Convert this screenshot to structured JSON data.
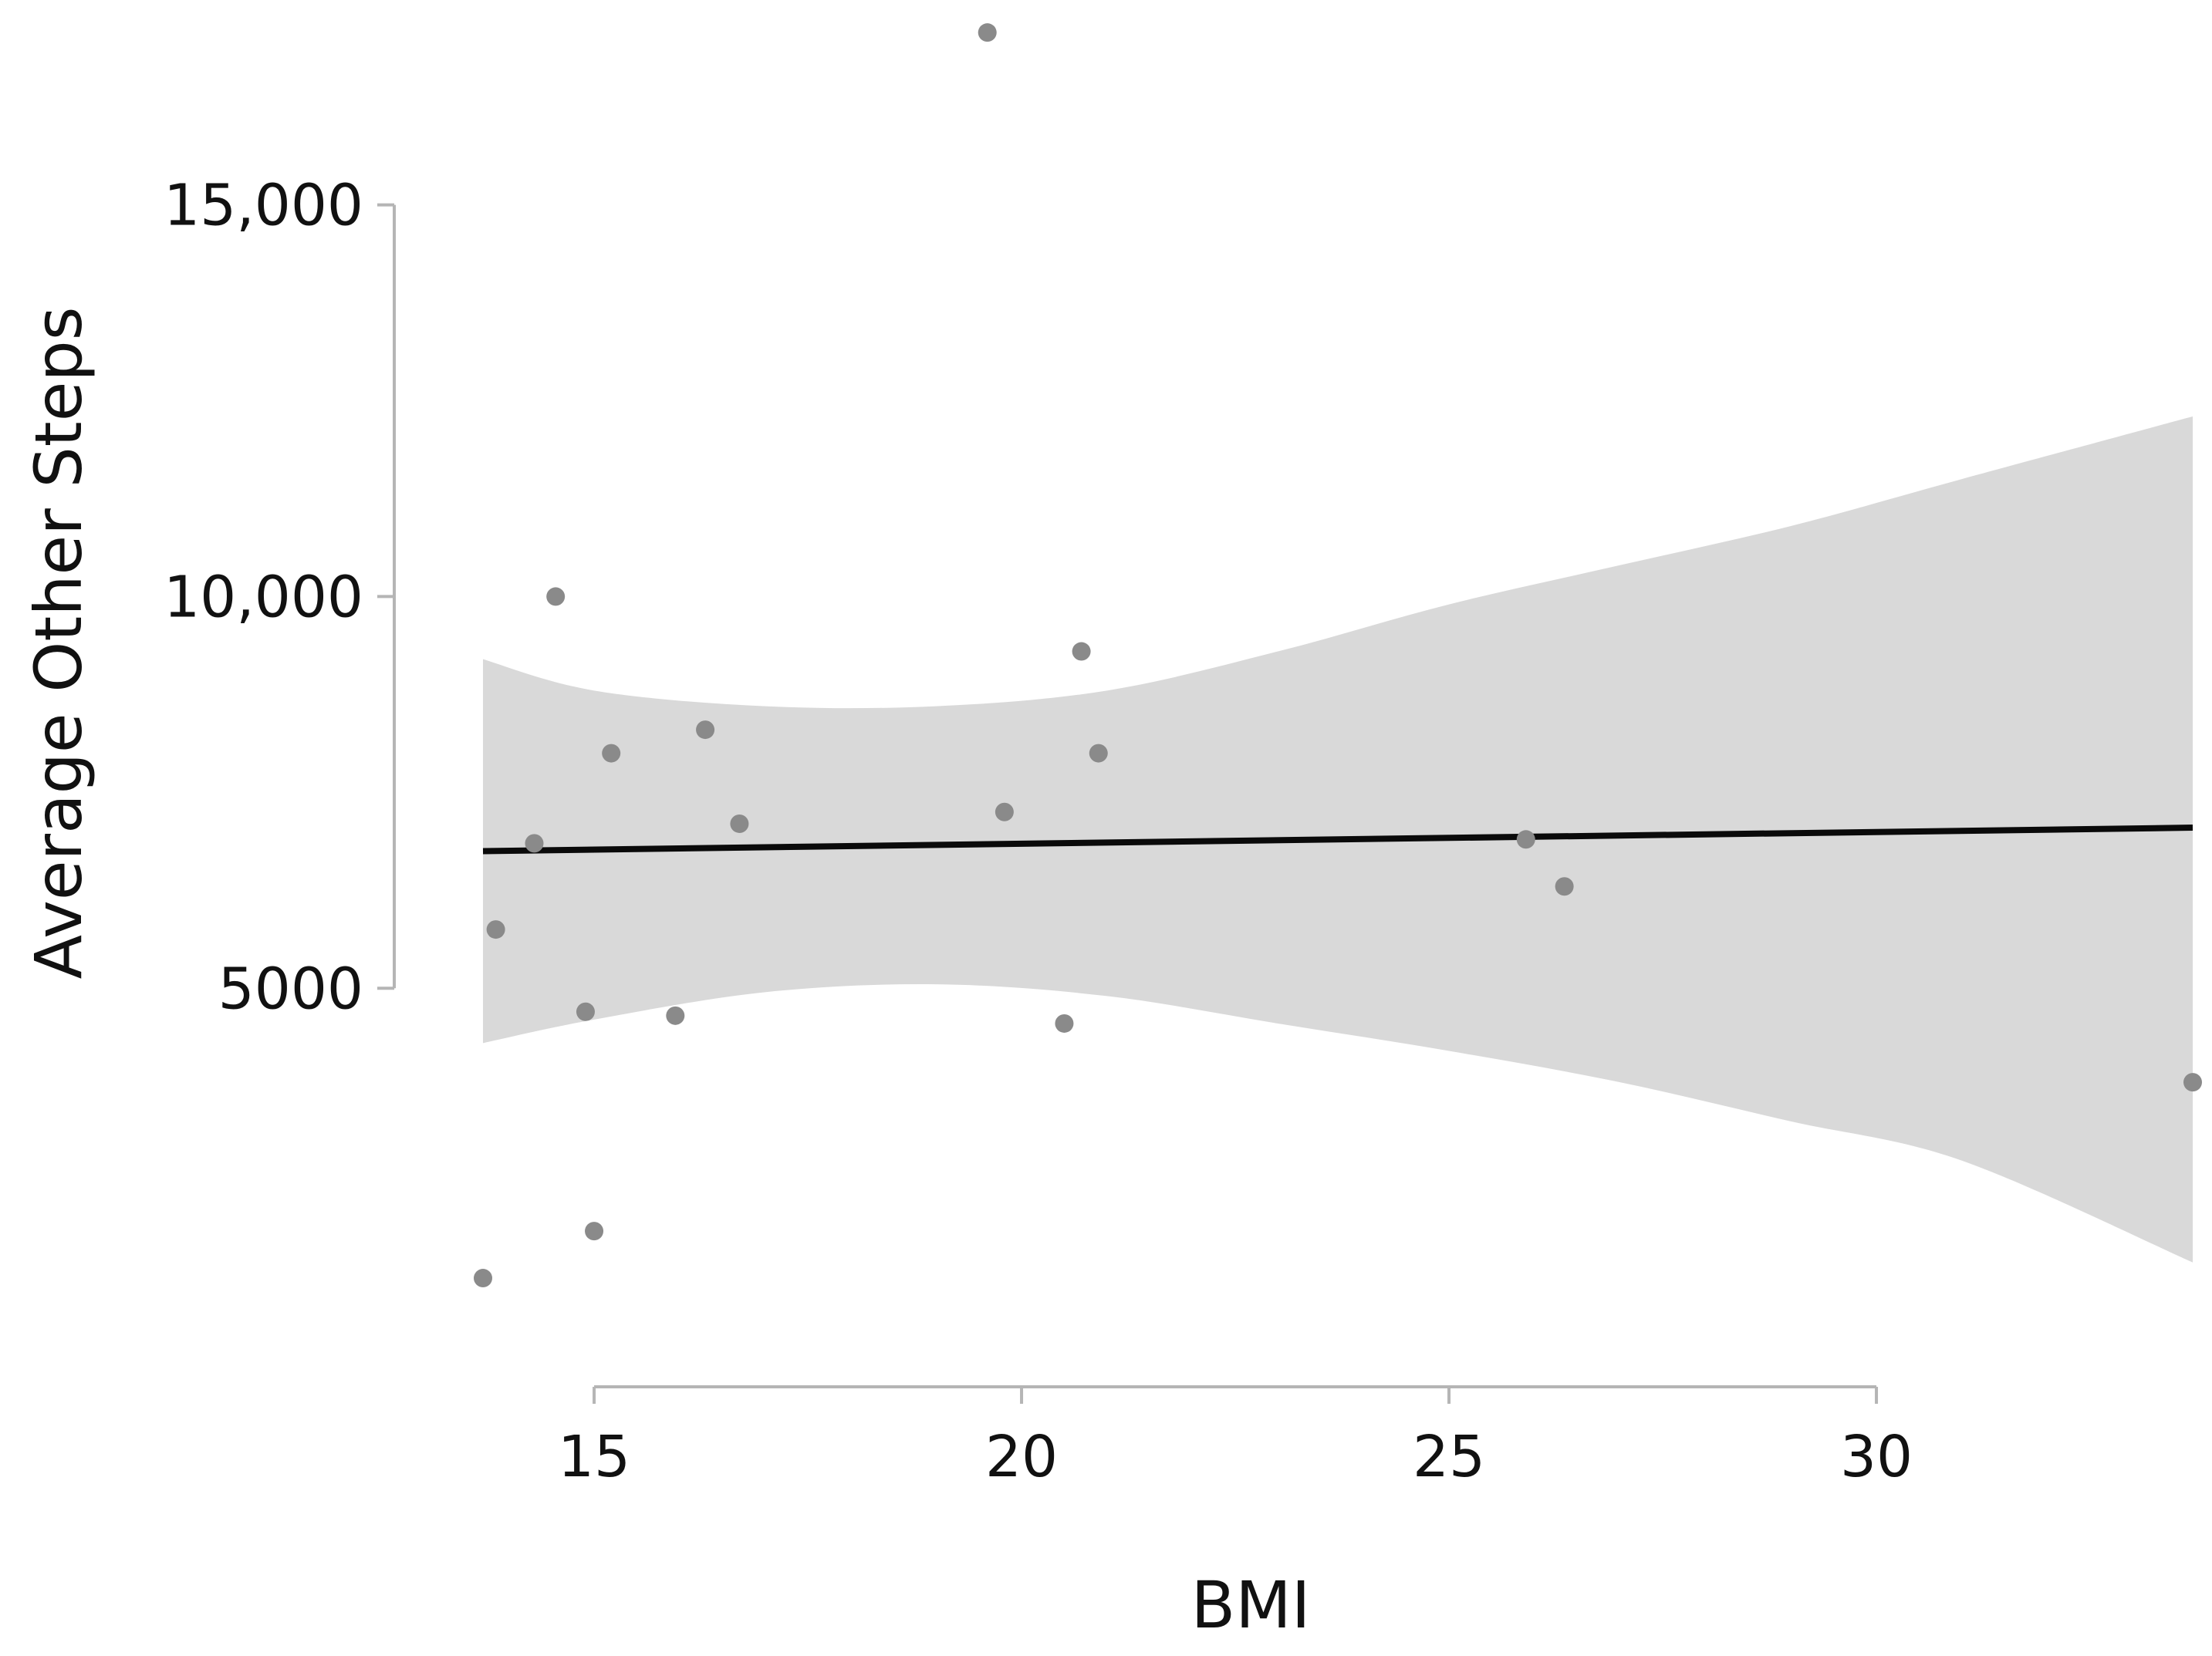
{
  "chart_data": {
    "type": "scatter",
    "title": "",
    "xlabel": "BMI",
    "ylabel": "Average Other Steps",
    "xlim": [
      13.7,
      33.7
    ],
    "ylim": [
      700,
      17300
    ],
    "x_ticks": [
      15,
      20,
      25,
      30
    ],
    "x_tick_labels": [
      "15",
      "20",
      "25",
      "30"
    ],
    "y_ticks": [
      5000,
      10000,
      15000
    ],
    "y_tick_labels": [
      "5000",
      "10,000",
      "15,000"
    ],
    "grid": false,
    "legend": "none",
    "colors": {
      "points": "#8a8a8a",
      "fit": "#0a0a0a",
      "band": "#d9d9d9",
      "axis": "#b5b5b5"
    },
    "points": [
      {
        "x": 13.7,
        "y": 1300
      },
      {
        "x": 13.85,
        "y": 5750
      },
      {
        "x": 14.3,
        "y": 6850
      },
      {
        "x": 14.55,
        "y": 10000
      },
      {
        "x": 14.9,
        "y": 4700
      },
      {
        "x": 15.0,
        "y": 1900
      },
      {
        "x": 15.2,
        "y": 8000
      },
      {
        "x": 15.95,
        "y": 4650
      },
      {
        "x": 16.3,
        "y": 8300
      },
      {
        "x": 16.7,
        "y": 7100
      },
      {
        "x": 19.6,
        "y": 17200
      },
      {
        "x": 19.8,
        "y": 7250
      },
      {
        "x": 20.5,
        "y": 4550
      },
      {
        "x": 20.7,
        "y": 9300
      },
      {
        "x": 20.9,
        "y": 8000
      },
      {
        "x": 25.9,
        "y": 6900
      },
      {
        "x": 26.35,
        "y": 6300
      },
      {
        "x": 33.7,
        "y": 3800
      }
    ],
    "fit_line": {
      "x": [
        13.7,
        33.7
      ],
      "y": [
        6750,
        7050
      ]
    },
    "confidence_band": {
      "x": [
        13.7,
        15,
        17,
        19,
        21,
        23,
        25,
        27,
        29,
        31,
        33.7
      ],
      "upper": [
        9200,
        8800,
        8600,
        8600,
        8800,
        9300,
        9900,
        10400,
        10900,
        11500,
        12300
      ],
      "lower": [
        4300,
        4600,
        4950,
        5050,
        4900,
        4550,
        4200,
        3800,
        3300,
        2800,
        1500
      ]
    }
  }
}
